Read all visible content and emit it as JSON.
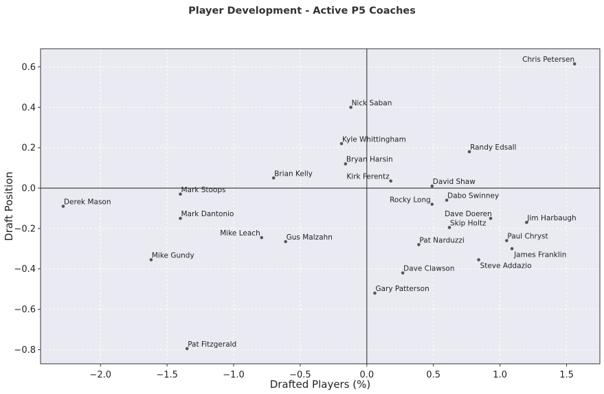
{
  "chart_data": {
    "type": "scatter",
    "title": "Player Development - Active P5 Coaches",
    "xlabel": "Drafted Players (%)",
    "ylabel": "Draft Position",
    "xlim": [
      -2.45,
      1.75
    ],
    "ylim": [
      -0.87,
      0.69
    ],
    "x_ticks": [
      -2.0,
      -1.5,
      -1.0,
      -0.5,
      0.0,
      0.5,
      1.0,
      1.5
    ],
    "x_tick_labels": [
      "−2.0",
      "−1.5",
      "−1.0",
      "−0.5",
      "0.0",
      "0.5",
      "1.0",
      "1.5"
    ],
    "y_ticks": [
      0.6,
      0.4,
      0.2,
      0.0,
      -0.2,
      -0.4,
      -0.6,
      -0.8
    ],
    "y_tick_labels": [
      "0.6",
      "0.4",
      "0.2",
      "0.0",
      "−0.2",
      "−0.4",
      "−0.6",
      "−0.8"
    ],
    "grid": true,
    "reference_lines": {
      "x": 0.0,
      "y": 0.0
    },
    "colors": {
      "plot_background": "#eaeaf2",
      "point": "#555555",
      "reference_line": "#333333",
      "grid": "#ffffff"
    },
    "points": [
      {
        "name": "Chris Petersen",
        "x": 1.56,
        "y": 0.615
      },
      {
        "name": "Nick Saban",
        "x": -0.12,
        "y": 0.4
      },
      {
        "name": "Kyle Whittingham",
        "x": -0.19,
        "y": 0.22
      },
      {
        "name": "Randy Edsall",
        "x": 0.77,
        "y": 0.18
      },
      {
        "name": "Bryan Harsin",
        "x": -0.16,
        "y": 0.12
      },
      {
        "name": "Brian Kelly",
        "x": -0.7,
        "y": 0.05
      },
      {
        "name": "Kirk Ferentz",
        "x": 0.18,
        "y": 0.035
      },
      {
        "name": "David Shaw",
        "x": 0.49,
        "y": 0.01
      },
      {
        "name": "Mark Stoops",
        "x": -1.4,
        "y": -0.03
      },
      {
        "name": "Derek Mason",
        "x": -2.28,
        "y": -0.09
      },
      {
        "name": "Rocky Long",
        "x": 0.49,
        "y": -0.08
      },
      {
        "name": "Dabo Swinney",
        "x": 0.6,
        "y": -0.06
      },
      {
        "name": "Mark Dantonio",
        "x": -1.4,
        "y": -0.15
      },
      {
        "name": "Dave Doeren",
        "x": 0.93,
        "y": -0.15
      },
      {
        "name": "Jim Harbaugh",
        "x": 1.2,
        "y": -0.17
      },
      {
        "name": "Skip Holtz",
        "x": 0.62,
        "y": -0.195
      },
      {
        "name": "Mike Leach",
        "x": -0.79,
        "y": -0.245
      },
      {
        "name": "Gus Malzahn",
        "x": -0.61,
        "y": -0.265
      },
      {
        "name": "Paul Chryst",
        "x": 1.05,
        "y": -0.26
      },
      {
        "name": "Pat Narduzzi",
        "x": 0.39,
        "y": -0.28
      },
      {
        "name": "James Franklin",
        "x": 1.09,
        "y": -0.3
      },
      {
        "name": "Mike Gundy",
        "x": -1.62,
        "y": -0.355
      },
      {
        "name": "Steve Addazio",
        "x": 0.84,
        "y": -0.355
      },
      {
        "name": "Dave Clawson",
        "x": 0.27,
        "y": -0.42
      },
      {
        "name": "Gary Patterson",
        "x": 0.06,
        "y": -0.52
      },
      {
        "name": "Pat Fitzgerald",
        "x": -1.35,
        "y": -0.795
      }
    ]
  }
}
